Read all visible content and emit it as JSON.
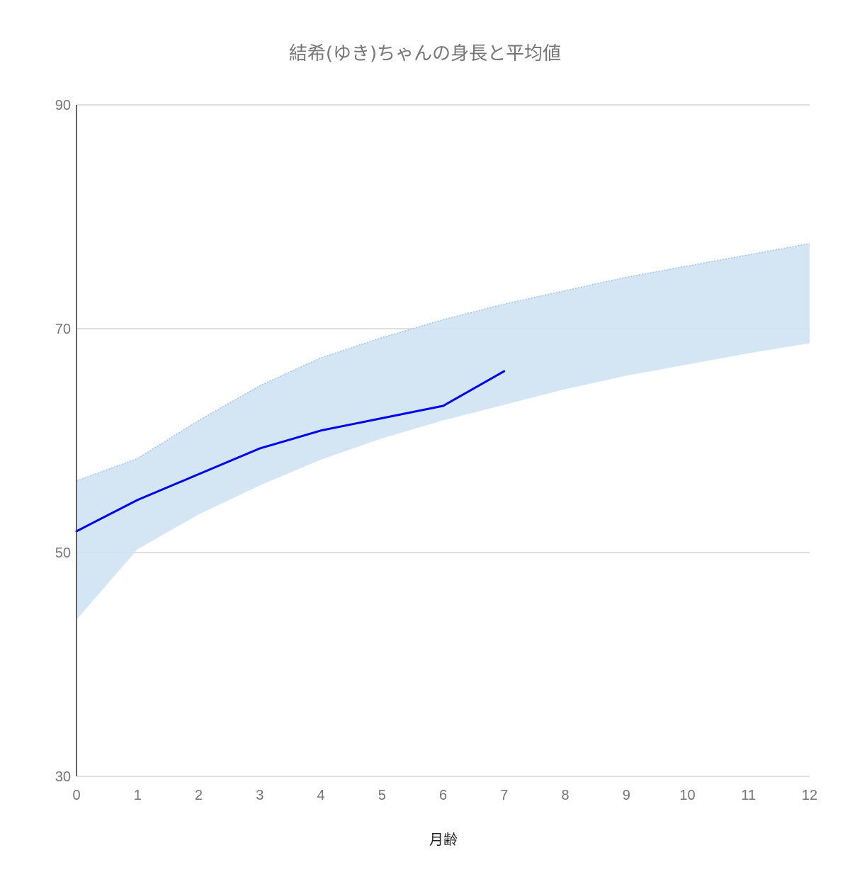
{
  "chart_data": {
    "type": "area",
    "title": "結希(ゆき)ちゃんの身長と平均値",
    "xlabel": "月齢",
    "ylabel": "",
    "xlim": [
      0,
      12
    ],
    "ylim": [
      30,
      90
    ],
    "x_ticks": [
      0,
      1,
      2,
      3,
      4,
      5,
      6,
      7,
      8,
      9,
      10,
      11,
      12
    ],
    "y_ticks": [
      30,
      50,
      70,
      90
    ],
    "grid": true,
    "legend": "none",
    "band": {
      "x": [
        0,
        1,
        2,
        3,
        4,
        5,
        6,
        7,
        8,
        9,
        10,
        11,
        12
      ],
      "lower": [
        44.0,
        50.3,
        53.4,
        56.0,
        58.3,
        60.2,
        61.8,
        63.2,
        64.6,
        65.8,
        66.8,
        67.8,
        68.7
      ],
      "upper": [
        56.4,
        58.4,
        61.8,
        64.9,
        67.4,
        69.2,
        70.8,
        72.2,
        73.4,
        74.6,
        75.6,
        76.6,
        77.6
      ],
      "color": "#cfe2f3",
      "edge_color": "#9fc5e8"
    },
    "series": [
      {
        "x": [
          0,
          1,
          2,
          3,
          4,
          5,
          6,
          7
        ],
        "values": [
          51.9,
          54.7,
          57.0,
          59.3,
          60.9,
          62.0,
          63.1,
          66.2
        ],
        "color": "#0000ee"
      }
    ]
  }
}
